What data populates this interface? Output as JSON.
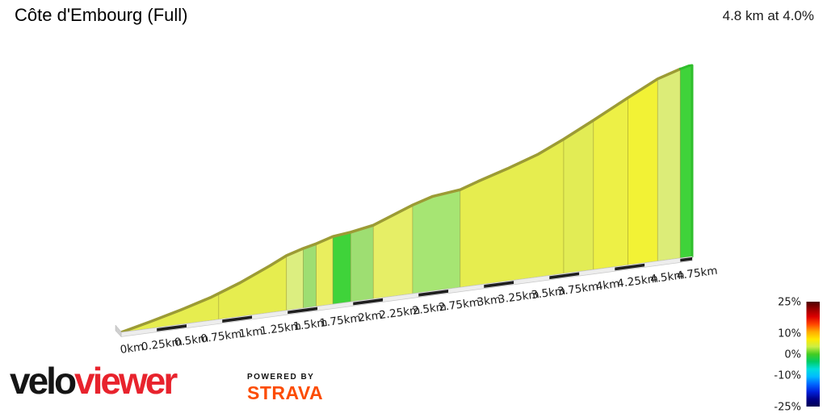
{
  "header": {
    "title": "Côte d'Embourg (Full)",
    "summary": "4.8 km at 4.0%"
  },
  "footer": {
    "brand_black": "velo",
    "brand_red": "viewer",
    "brand_black_color": "#151515",
    "brand_red_color": "#e8232d",
    "powered_by": "POWERED BY",
    "strava": "STRAVA",
    "strava_color": "#fc4c02"
  },
  "chart_data": {
    "type": "area",
    "title": "Côte d'Embourg (Full)",
    "total_distance_km": 4.8,
    "average_gradient_pct": 4.0,
    "x_unit": "km",
    "x_tick_labels": [
      "0km",
      "0.25km",
      "0.5km",
      "0.75km",
      "1km",
      "1.25km",
      "1.5km",
      "1.75km",
      "2km",
      "2.25km",
      "2.5km",
      "2.75km",
      "3km",
      "3.25km",
      "3.5km",
      "3.75km",
      "4km",
      "4.25km",
      "4.5km",
      "4.75km"
    ],
    "x_tick_km": [
      0,
      0.25,
      0.5,
      0.75,
      1,
      1.25,
      1.5,
      1.75,
      2,
      2.25,
      2.5,
      2.75,
      3,
      3.25,
      3.5,
      3.75,
      4,
      4.25,
      4.5,
      4.75
    ],
    "elevation_profile": [
      {
        "km": 0.0,
        "elev_m": 0
      },
      {
        "km": 0.25,
        "elev_m": 7
      },
      {
        "km": 0.5,
        "elev_m": 14.5
      },
      {
        "km": 0.75,
        "elev_m": 23
      },
      {
        "km": 1.0,
        "elev_m": 34
      },
      {
        "km": 1.25,
        "elev_m": 47
      },
      {
        "km": 1.39,
        "elev_m": 55
      },
      {
        "km": 1.53,
        "elev_m": 60
      },
      {
        "km": 1.64,
        "elev_m": 63
      },
      {
        "km": 1.78,
        "elev_m": 68
      },
      {
        "km": 1.93,
        "elev_m": 70
      },
      {
        "km": 2.12,
        "elev_m": 74
      },
      {
        "km": 2.45,
        "elev_m": 89
      },
      {
        "km": 2.62,
        "elev_m": 95
      },
      {
        "km": 2.85,
        "elev_m": 98
      },
      {
        "km": 3.0,
        "elev_m": 104
      },
      {
        "km": 3.25,
        "elev_m": 113
      },
      {
        "km": 3.5,
        "elev_m": 123
      },
      {
        "km": 3.72,
        "elev_m": 135
      },
      {
        "km": 3.97,
        "elev_m": 150
      },
      {
        "km": 4.26,
        "elev_m": 168
      },
      {
        "km": 4.51,
        "elev_m": 183
      },
      {
        "km": 4.7,
        "elev_m": 190
      },
      {
        "km": 4.77,
        "elev_m": 192
      },
      {
        "km": 4.8,
        "elev_m": 192
      }
    ],
    "gradient_segments": [
      {
        "from_km": 0.0,
        "to_km": 0.82,
        "color": "#e6ed4f",
        "approx_gradient_pct": 3.5
      },
      {
        "from_km": 0.82,
        "to_km": 1.39,
        "color": "#e6ed4f",
        "approx_gradient_pct": 5.0
      },
      {
        "from_km": 1.39,
        "to_km": 1.53,
        "color": "#dcee80",
        "approx_gradient_pct": 3.8
      },
      {
        "from_km": 1.53,
        "to_km": 1.64,
        "color": "#9ede72",
        "approx_gradient_pct": 2.7
      },
      {
        "from_km": 1.64,
        "to_km": 1.78,
        "color": "#e9ee5e",
        "approx_gradient_pct": 3.6
      },
      {
        "from_km": 1.78,
        "to_km": 1.93,
        "color": "#3fd33a",
        "approx_gradient_pct": 1.3
      },
      {
        "from_km": 1.93,
        "to_km": 2.12,
        "color": "#9ede72",
        "approx_gradient_pct": 2.1
      },
      {
        "from_km": 2.12,
        "to_km": 2.45,
        "color": "#e6ee66",
        "approx_gradient_pct": 4.5
      },
      {
        "from_km": 2.45,
        "to_km": 2.85,
        "color": "#a6e573",
        "approx_gradient_pct": 2.2
      },
      {
        "from_km": 2.85,
        "to_km": 3.72,
        "color": "#e6ed4f",
        "approx_gradient_pct": 4.2
      },
      {
        "from_km": 3.72,
        "to_km": 3.97,
        "color": "#e2ec55",
        "approx_gradient_pct": 6.0
      },
      {
        "from_km": 3.97,
        "to_km": 4.26,
        "color": "#edf046",
        "approx_gradient_pct": 6.2
      },
      {
        "from_km": 4.26,
        "to_km": 4.51,
        "color": "#f2f235",
        "approx_gradient_pct": 6.0
      },
      {
        "from_km": 4.51,
        "to_km": 4.7,
        "color": "#dcec78",
        "approx_gradient_pct": 3.7
      },
      {
        "from_km": 4.7,
        "to_km": 4.8,
        "color": "#3fd33a",
        "approx_gradient_pct": 1.0
      }
    ],
    "legend": {
      "tick_labels": [
        "25%",
        "10%",
        "0%",
        "-10%",
        "-25%"
      ],
      "tick_values": [
        25,
        10,
        0,
        -10,
        -25
      ],
      "colormap_stops_top_to_bottom": [
        "#4d0000",
        "#990000",
        "#dd0000",
        "#ff4400",
        "#ffaa00",
        "#ffe800",
        "#ccee44",
        "#44cc22",
        "#00cc66",
        "#00dddd",
        "#00bbff",
        "#0066ff",
        "#0022dd",
        "#000088",
        "#000055"
      ],
      "position": "right"
    },
    "layout": {
      "grid": false,
      "y_axis_labels": false,
      "ridge_color": "#9c9b35",
      "end_cap_color": "#2fbe2c",
      "axis_ribbon_color": "#ededed",
      "axis_dash_color": "#1f1f1f"
    }
  }
}
